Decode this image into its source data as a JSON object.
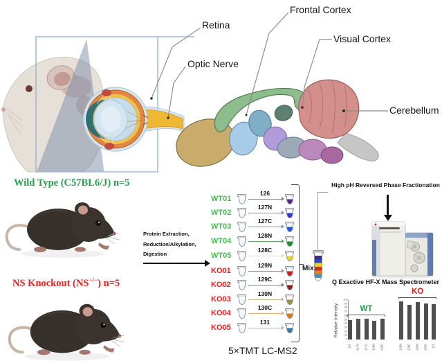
{
  "anatomy": {
    "frontal_cortex": "Frontal Cortex",
    "retina": "Retina",
    "optic_nerve": "Optic Nerve",
    "visual_cortex": "Visual Cortex",
    "cerebellum": "Cerebellum"
  },
  "groups": {
    "wt": {
      "title": "Wild Type (C57BL6/J) n=5",
      "color": "#1FA24A"
    },
    "ko": {
      "pre": "NS Knockout (NS",
      "sup": "−/−",
      "post": ") n=5",
      "color": "#E32222"
    }
  },
  "process": {
    "line1": "Protein Extraction,",
    "line2": "Reduction/Alkylation,",
    "line3": "Digestion"
  },
  "tmt": {
    "title": "5×TMT LC-MS2",
    "mix_label": "Mix",
    "mix_band_colors": [
      "#3D2B8E",
      "#2B49C9",
      "#E8D21F",
      "#D12A1F",
      "#E2821F",
      "#4E8FBE"
    ],
    "samples": [
      {
        "id": "WT01",
        "channel": "126",
        "id_color": "#3DC24E",
        "arrow_color": "#8E6FAE",
        "tube_color": "#55268E"
      },
      {
        "id": "WT02",
        "channel": "127N",
        "id_color": "#3DC24E",
        "arrow_color": "#7A7FD1",
        "tube_color": "#2B3ACD"
      },
      {
        "id": "WT03",
        "channel": "127C",
        "id_color": "#3DC24E",
        "arrow_color": "#6E8EDC",
        "tube_color": "#1F5BE0"
      },
      {
        "id": "WT04",
        "channel": "128N",
        "id_color": "#3DC24E",
        "arrow_color": "#5FAE5F",
        "tube_color": "#1F8E2E"
      },
      {
        "id": "WT05",
        "channel": "128C",
        "id_color": "#3DC24E",
        "arrow_color": "#EDE26B",
        "tube_color": "#EAD81F"
      },
      {
        "id": "KO01",
        "channel": "129N",
        "id_color": "#E32222",
        "arrow_color": "#E86E6E",
        "tube_color": "#CD1F1F"
      },
      {
        "id": "KO02",
        "channel": "129C",
        "id_color": "#E32222",
        "arrow_color": "#B06060",
        "tube_color": "#8E1F1F"
      },
      {
        "id": "KO03",
        "channel": "130N",
        "id_color": "#E32222",
        "arrow_color": "#C9BE8E",
        "tube_color": "#9E8E3D"
      },
      {
        "id": "KO04",
        "channel": "130C",
        "id_color": "#E32222",
        "arrow_color": "#EDAE6E",
        "tube_color": "#DC7A1F"
      },
      {
        "id": "KO05",
        "channel": "131",
        "id_color": "#E32222",
        "arrow_color": "#8EB8D1",
        "tube_color": "#2E7AA6"
      }
    ]
  },
  "right": {
    "fractionation": "High pH Reversed Phase Fractionation",
    "spectrometer": "Q Exactive HF-X Mass Spectrometer"
  },
  "chart_data": {
    "type": "bar",
    "categories": [
      "126",
      "127N",
      "127C",
      "128N",
      "128C",
      "129N",
      "129C",
      "130N",
      "130C",
      "131"
    ],
    "values": [
      50,
      52,
      53,
      48,
      53,
      97,
      88,
      94,
      91,
      89
    ],
    "series": [
      {
        "name": "WT",
        "color": "#1FA24A",
        "indices": [
          0,
          1,
          2,
          3,
          4
        ]
      },
      {
        "name": "KO",
        "color": "#E32222",
        "indices": [
          5,
          6,
          7,
          8,
          9
        ]
      }
    ],
    "title": "",
    "xlabel": "",
    "ylabel": "Relative Intensity",
    "ylim": [
      0,
      100
    ],
    "yticks": [
      0,
      10,
      20,
      30,
      40,
      50,
      60,
      70,
      80,
      90,
      100
    ],
    "bar_color": "#4F4F4F",
    "grid": false,
    "legend_position": "above-groups"
  }
}
